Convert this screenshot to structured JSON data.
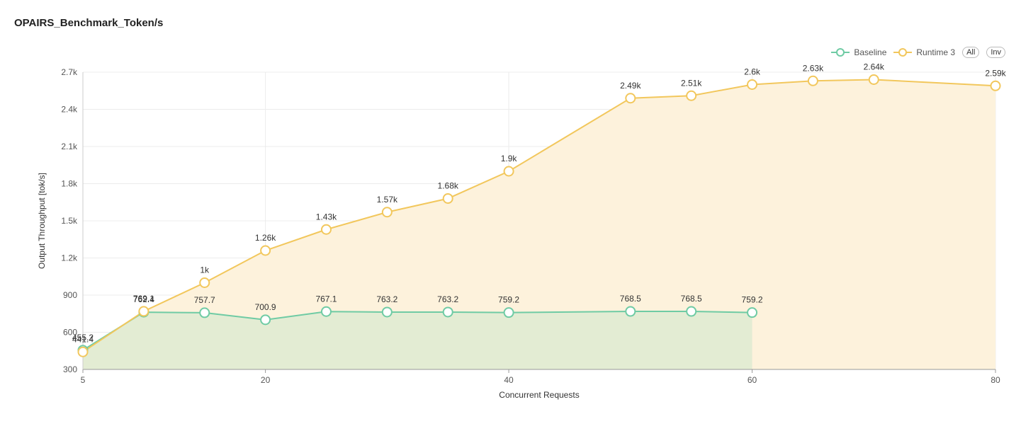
{
  "chart_data": {
    "type": "line",
    "title": "OPAIRS_Benchmark_Token/s",
    "xlabel": "Concurrent Requests",
    "ylabel": "Output Throughput [tok/s]",
    "xlim": [
      5,
      80
    ],
    "ylim": [
      300,
      2700
    ],
    "x_ticks": [
      5,
      20,
      40,
      60,
      80
    ],
    "y_ticks": [
      300,
      600,
      900,
      1200,
      1500,
      1800,
      2100,
      2400,
      2700
    ],
    "y_tick_labels": [
      "300",
      "600",
      "900",
      "1.2k",
      "1.5k",
      "1.8k",
      "2.1k",
      "2.4k",
      "2.7k"
    ],
    "grid": true,
    "legend_position": "top-right",
    "legend_buttons": [
      "All",
      "Inv"
    ],
    "series": [
      {
        "name": "Baseline",
        "color": "#6fcba4",
        "fill": "#e3ecd3",
        "points": [
          {
            "x": 5,
            "y": 455.2,
            "label": "455.2"
          },
          {
            "x": 10,
            "y": 762.4,
            "label": "762.4"
          },
          {
            "x": 15,
            "y": 757.7,
            "label": "757.7"
          },
          {
            "x": 20,
            "y": 700.9,
            "label": "700.9"
          },
          {
            "x": 25,
            "y": 767.1,
            "label": "767.1"
          },
          {
            "x": 30,
            "y": 763.2,
            "label": "763.2"
          },
          {
            "x": 35,
            "y": 763.2,
            "label": "763.2"
          },
          {
            "x": 40,
            "y": 759.2,
            "label": "759.2"
          },
          {
            "x": 50,
            "y": 768.5,
            "label": "768.5"
          },
          {
            "x": 55,
            "y": 768.5,
            "label": "768.5"
          },
          {
            "x": 60,
            "y": 759.2,
            "label": "759.2"
          }
        ]
      },
      {
        "name": "Runtime 3",
        "color": "#f2c75c",
        "fill": "#fdf2dc",
        "points": [
          {
            "x": 5,
            "y": 441.4,
            "label": "441.4"
          },
          {
            "x": 10,
            "y": 769.1,
            "label": "769.1"
          },
          {
            "x": 15,
            "y": 1000,
            "label": "1k"
          },
          {
            "x": 20,
            "y": 1260,
            "label": "1.26k"
          },
          {
            "x": 25,
            "y": 1430,
            "label": "1.43k"
          },
          {
            "x": 30,
            "y": 1570,
            "label": "1.57k"
          },
          {
            "x": 35,
            "y": 1680,
            "label": "1.68k"
          },
          {
            "x": 40,
            "y": 1900,
            "label": "1.9k"
          },
          {
            "x": 50,
            "y": 2490,
            "label": "2.49k"
          },
          {
            "x": 55,
            "y": 2510,
            "label": "2.51k"
          },
          {
            "x": 60,
            "y": 2600,
            "label": "2.6k"
          },
          {
            "x": 65,
            "y": 2630,
            "label": "2.63k"
          },
          {
            "x": 70,
            "y": 2640,
            "label": "2.64k"
          },
          {
            "x": 80,
            "y": 2590,
            "label": "2.59k"
          }
        ]
      }
    ]
  }
}
